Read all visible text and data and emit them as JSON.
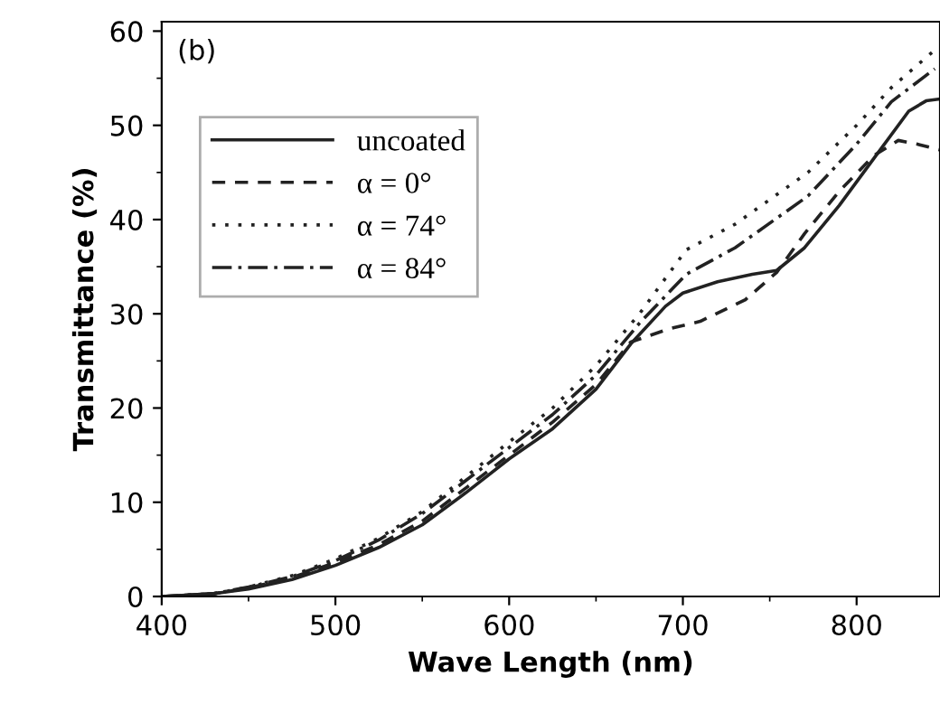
{
  "chart_data": {
    "type": "line",
    "xlabel": "Wave Length (nm)",
    "ylabel": "Transmittance (%)",
    "annotations": [
      "(b)"
    ],
    "xlim": [
      400,
      848
    ],
    "ylim": [
      0,
      61
    ],
    "xticks": [
      400,
      500,
      600,
      700,
      800
    ],
    "yticks": [
      0,
      10,
      20,
      30,
      40,
      50,
      60
    ],
    "legend": "top left",
    "grid": false,
    "series": [
      {
        "name": "uncoated",
        "color": "#222222",
        "line_style": "solid",
        "x": [
          400,
          430,
          450,
          475,
          500,
          525,
          550,
          575,
          600,
          625,
          650,
          670,
          690,
          700,
          720,
          740,
          754,
          770,
          790,
          810,
          830,
          840,
          848
        ],
        "values": [
          0,
          0.3,
          0.8,
          1.8,
          3.3,
          5.2,
          7.6,
          11,
          14.6,
          17.8,
          22,
          26.8,
          30.8,
          32.2,
          33.4,
          34.2,
          34.6,
          37,
          41.5,
          46.5,
          51.5,
          52.6,
          52.8
        ]
      },
      {
        "name": "α = 0°",
        "color": "#222222",
        "line_style": "dashed",
        "x": [
          400,
          430,
          450,
          475,
          500,
          525,
          550,
          575,
          600,
          625,
          650,
          670,
          692,
          710,
          736,
          754,
          770,
          790,
          810,
          824,
          835,
          848
        ],
        "values": [
          0,
          0.3,
          0.9,
          2,
          3.6,
          5.5,
          8,
          11.5,
          15,
          18.5,
          22.5,
          27,
          28.4,
          29.2,
          31.5,
          34.4,
          38.5,
          43,
          46.8,
          48.4,
          48,
          47.4
        ]
      },
      {
        "name": "α = 74°",
        "color": "#222222",
        "line_style": "dotted",
        "x": [
          400,
          430,
          450,
          475,
          500,
          525,
          550,
          575,
          600,
          625,
          650,
          675,
          702,
          730,
          772,
          800,
          820,
          845
        ],
        "values": [
          0,
          0.3,
          1,
          2.2,
          4,
          6.2,
          9,
          12.7,
          16.4,
          20,
          24.5,
          30,
          36.8,
          39.5,
          45,
          50,
          54,
          58
        ]
      },
      {
        "name": "α = 84°",
        "color": "#222222",
        "line_style": "dashdot",
        "x": [
          400,
          430,
          450,
          475,
          500,
          525,
          550,
          575,
          600,
          625,
          650,
          675,
          702,
          730,
          772,
          800,
          820,
          845
        ],
        "values": [
          0,
          0.3,
          1,
          2.1,
          3.8,
          6,
          8.8,
          12.3,
          15.8,
          19.3,
          23.5,
          29,
          34.2,
          37,
          42.5,
          48,
          52.5,
          56
        ]
      }
    ]
  }
}
